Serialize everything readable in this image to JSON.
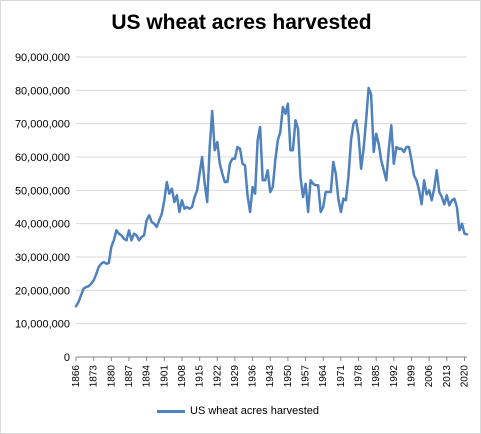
{
  "chart_data": {
    "type": "line",
    "title": "US wheat acres harvested",
    "xlabel": "",
    "ylabel": "",
    "ylim": [
      0,
      90000000
    ],
    "yticks": [
      "0",
      "10,000,000",
      "20,000,000",
      "30,000,000",
      "40,000,000",
      "50,000,000",
      "60,000,000",
      "70,000,000",
      "80,000,000",
      "90,000,000"
    ],
    "xticks": [
      "1866",
      "1873",
      "1880",
      "1887",
      "1894",
      "1901",
      "1908",
      "1915",
      "1922",
      "1929",
      "1936",
      "1943",
      "1950",
      "1957",
      "1964",
      "1971",
      "1978",
      "1985",
      "1992",
      "1999",
      "2006",
      "2013",
      "2020"
    ],
    "xlim": [
      1866,
      2021
    ],
    "grid": true,
    "legend": "bottom",
    "color": "#4f81bd",
    "series": [
      {
        "name": "US wheat acres harvested",
        "x": [
          1866,
          1867,
          1868,
          1869,
          1870,
          1871,
          1872,
          1873,
          1874,
          1875,
          1876,
          1877,
          1878,
          1879,
          1880,
          1881,
          1882,
          1883,
          1884,
          1885,
          1886,
          1887,
          1888,
          1889,
          1890,
          1891,
          1892,
          1893,
          1894,
          1895,
          1896,
          1897,
          1898,
          1899,
          1900,
          1901,
          1902,
          1903,
          1904,
          1905,
          1906,
          1907,
          1908,
          1909,
          1910,
          1911,
          1912,
          1913,
          1914,
          1915,
          1916,
          1917,
          1918,
          1919,
          1920,
          1921,
          1922,
          1923,
          1924,
          1925,
          1926,
          1927,
          1928,
          1929,
          1930,
          1931,
          1932,
          1933,
          1934,
          1935,
          1936,
          1937,
          1938,
          1939,
          1940,
          1941,
          1942,
          1943,
          1944,
          1945,
          1946,
          1947,
          1948,
          1949,
          1950,
          1951,
          1952,
          1953,
          1954,
          1955,
          1956,
          1957,
          1958,
          1959,
          1960,
          1961,
          1962,
          1963,
          1964,
          1965,
          1966,
          1967,
          1968,
          1969,
          1970,
          1971,
          1972,
          1973,
          1974,
          1975,
          1976,
          1977,
          1978,
          1979,
          1980,
          1981,
          1982,
          1983,
          1984,
          1985,
          1986,
          1987,
          1988,
          1989,
          1990,
          1991,
          1992,
          1993,
          1994,
          1995,
          1996,
          1997,
          1998,
          1999,
          2000,
          2001,
          2002,
          2003,
          2004,
          2005,
          2006,
          2007,
          2008,
          2009,
          2010,
          2011,
          2012,
          2013,
          2014,
          2015,
          2016,
          2017,
          2018,
          2019,
          2020,
          2021
        ],
        "values": [
          15200000,
          16500000,
          18500000,
          20500000,
          21000000,
          21200000,
          22000000,
          23000000,
          24800000,
          27000000,
          28000000,
          28500000,
          28000000,
          28200000,
          33000000,
          35000000,
          38000000,
          37000000,
          36500000,
          35500000,
          35000000,
          38000000,
          35000000,
          37000000,
          36500000,
          35000000,
          36000000,
          36500000,
          41000000,
          42500000,
          40500000,
          40000000,
          39000000,
          41000000,
          43000000,
          47000000,
          52500000,
          49000000,
          50500000,
          46500000,
          48500000,
          43500000,
          47000000,
          44500000,
          45000000,
          44500000,
          45000000,
          48000000,
          50000000,
          55000000,
          60000000,
          52000000,
          46500000,
          63000000,
          73800000,
          62000000,
          64500000,
          58000000,
          55000000,
          52500000,
          52500000,
          58000000,
          59500000,
          59500000,
          63000000,
          62500000,
          58000000,
          57500000,
          48500000,
          43500000,
          51000000,
          49000000,
          65000000,
          69000000,
          53000000,
          53000000,
          56000000,
          49500000,
          51000000,
          59000000,
          65000000,
          67500000,
          75000000,
          73000000,
          76000000,
          62000000,
          62000000,
          71000000,
          68500000,
          54000000,
          48000000,
          52000000,
          43500000,
          53000000,
          52000000,
          51500000,
          51500000,
          43500000,
          45000000,
          49500000,
          49500000,
          49500000,
          58500000,
          55000000,
          47500000,
          43500000,
          47500000,
          47000000,
          54000000,
          65000000,
          70000000,
          71000000,
          66500000,
          56500000,
          62500000,
          71000000,
          80700000,
          78800000,
          61500000,
          67000000,
          64000000,
          59000000,
          56000000,
          53000000,
          62500000,
          69500000,
          58000000,
          63000000,
          62500000,
          62500000,
          61500000,
          63000000,
          63000000,
          59000000,
          54500000,
          53000000,
          50000000,
          45800000,
          53000000,
          48800000,
          50000000,
          47000000,
          50500000,
          56000000,
          49500000,
          48000000,
          45800000,
          48500000,
          45500000,
          47000000,
          47500000,
          45000000,
          38000000,
          40000000,
          37000000,
          36800000
        ]
      }
    ]
  }
}
